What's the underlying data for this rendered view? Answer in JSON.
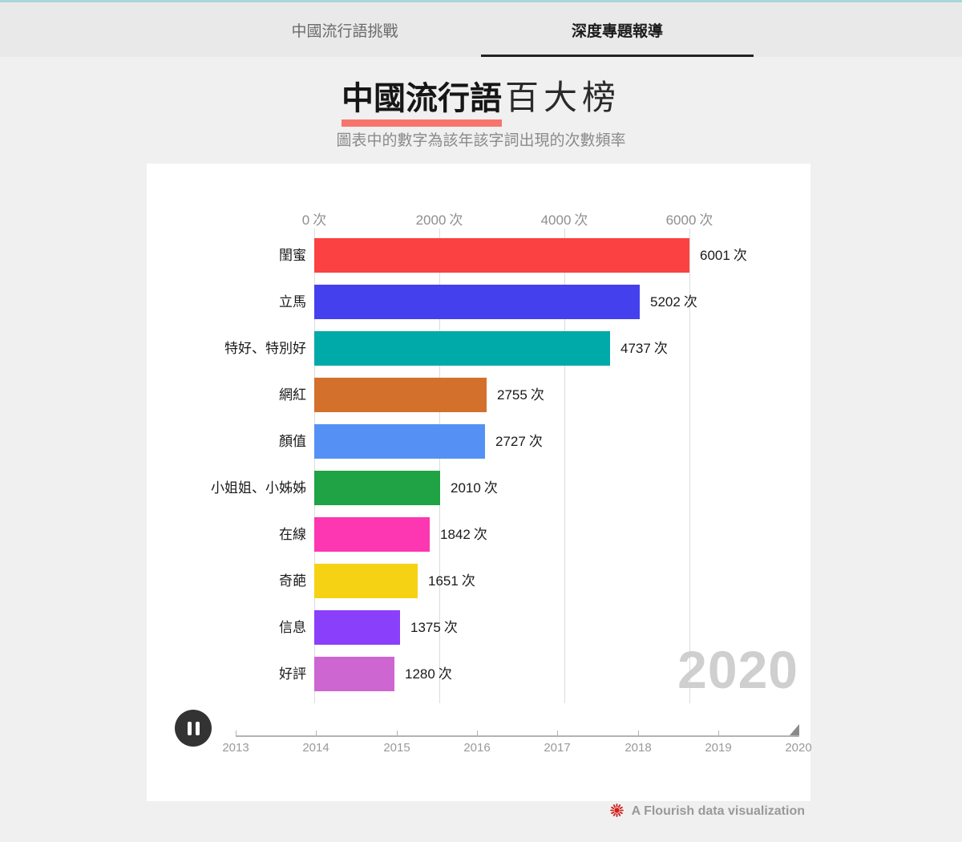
{
  "page": {
    "background": "#f0f0f0",
    "accent_strip_color": "#a9d6d8"
  },
  "tabs": [
    {
      "label": "中國流行語挑戰",
      "active": false
    },
    {
      "label": "深度專題報導",
      "active": true
    }
  ],
  "header": {
    "title_highlight": "中國流行語",
    "title_rest": "百大榜",
    "highlight_color": "#f7756c",
    "subtitle": "圖表中的數字為該年該字詞出現的次數頻率"
  },
  "chart_data": {
    "type": "bar",
    "orientation": "horizontal",
    "title": "中國流行語百大榜",
    "unit": "次",
    "value_suffix": "次",
    "axis_position": "top",
    "axis_ticks": [
      0,
      2000,
      4000,
      6000
    ],
    "xlim": [
      0,
      6400
    ],
    "grid": true,
    "categories": [
      "閨蜜",
      "立馬",
      "特好、特別好",
      "網紅",
      "顏值",
      "小姐姐、小姊姊",
      "在線",
      "奇葩",
      "信息",
      "好評"
    ],
    "values": [
      6001,
      5202,
      4737,
      2755,
      2727,
      2010,
      1842,
      1651,
      1375,
      1280
    ],
    "bars": [
      {
        "label": "閨蜜",
        "value": 6001,
        "color": "#fb4141"
      },
      {
        "label": "立馬",
        "value": 5202,
        "color": "#4440ee"
      },
      {
        "label": "特好、特別好",
        "value": 4737,
        "color": "#00aaa8"
      },
      {
        "label": "網紅",
        "value": 2755,
        "color": "#d2702c"
      },
      {
        "label": "顏值",
        "value": 2727,
        "color": "#5591f5"
      },
      {
        "label": "小姐姐、小姊姊",
        "value": 2010,
        "color": "#1fa345"
      },
      {
        "label": "在線",
        "value": 1842,
        "color": "#fd36b1"
      },
      {
        "label": "奇葩",
        "value": 1651,
        "color": "#f5d314"
      },
      {
        "label": "信息",
        "value": 1375,
        "color": "#8a3ffa"
      },
      {
        "label": "好評",
        "value": 1280,
        "color": "#cd66d0"
      }
    ],
    "watermark_year": "2020",
    "timeline": {
      "years": [
        "2013",
        "2014",
        "2015",
        "2016",
        "2017",
        "2018",
        "2019",
        "2020"
      ],
      "current": "2020",
      "player_state": "playing",
      "control": "pause"
    }
  },
  "footer": {
    "attribution": "A Flourish data visualization",
    "icon_color": "#d0201d"
  }
}
